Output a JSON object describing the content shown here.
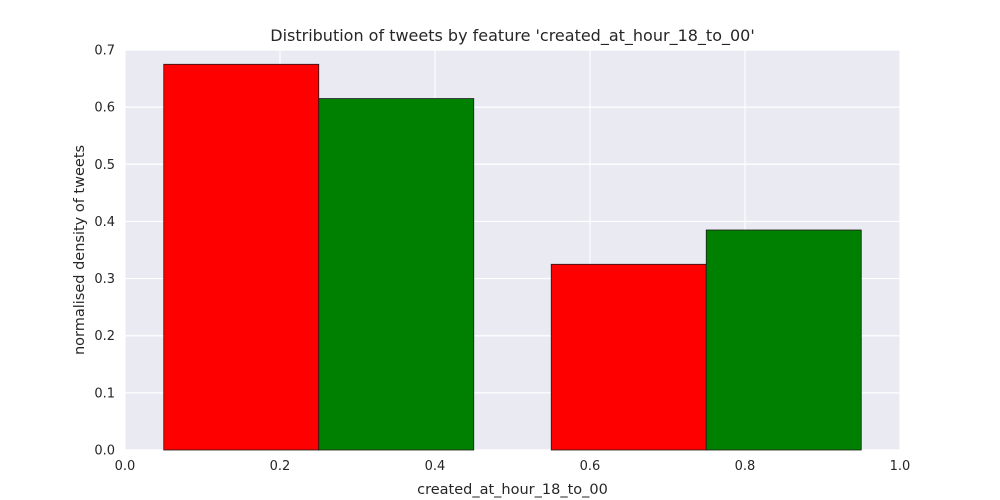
{
  "chart_data": {
    "type": "bar",
    "title": "Distribution of tweets by feature 'created_at_hour_18_to_00'",
    "xlabel": "created_at_hour_18_to_00",
    "ylabel": "normalised density of tweets",
    "xlim": [
      0.0,
      1.0
    ],
    "ylim": [
      0.0,
      0.7
    ],
    "xticks": [
      "0.0",
      "0.2",
      "0.4",
      "0.6",
      "0.8",
      "1.0"
    ],
    "yticks": [
      "0.0",
      "0.1",
      "0.2",
      "0.3",
      "0.4",
      "0.5",
      "0.6",
      "0.7"
    ],
    "grid": true,
    "legend": false,
    "bars": [
      {
        "x_start": 0.05,
        "x_end": 0.25,
        "value": 0.675,
        "color": "#ff0000"
      },
      {
        "x_start": 0.25,
        "x_end": 0.45,
        "value": 0.615,
        "color": "#008000"
      },
      {
        "x_start": 0.55,
        "x_end": 0.75,
        "value": 0.325,
        "color": "#ff0000"
      },
      {
        "x_start": 0.75,
        "x_end": 0.95,
        "value": 0.385,
        "color": "#008000"
      }
    ],
    "colors": {
      "plot_background": "#eaeaf2",
      "grid": "#ffffff",
      "bar_edge": "#1a1a1a"
    }
  }
}
